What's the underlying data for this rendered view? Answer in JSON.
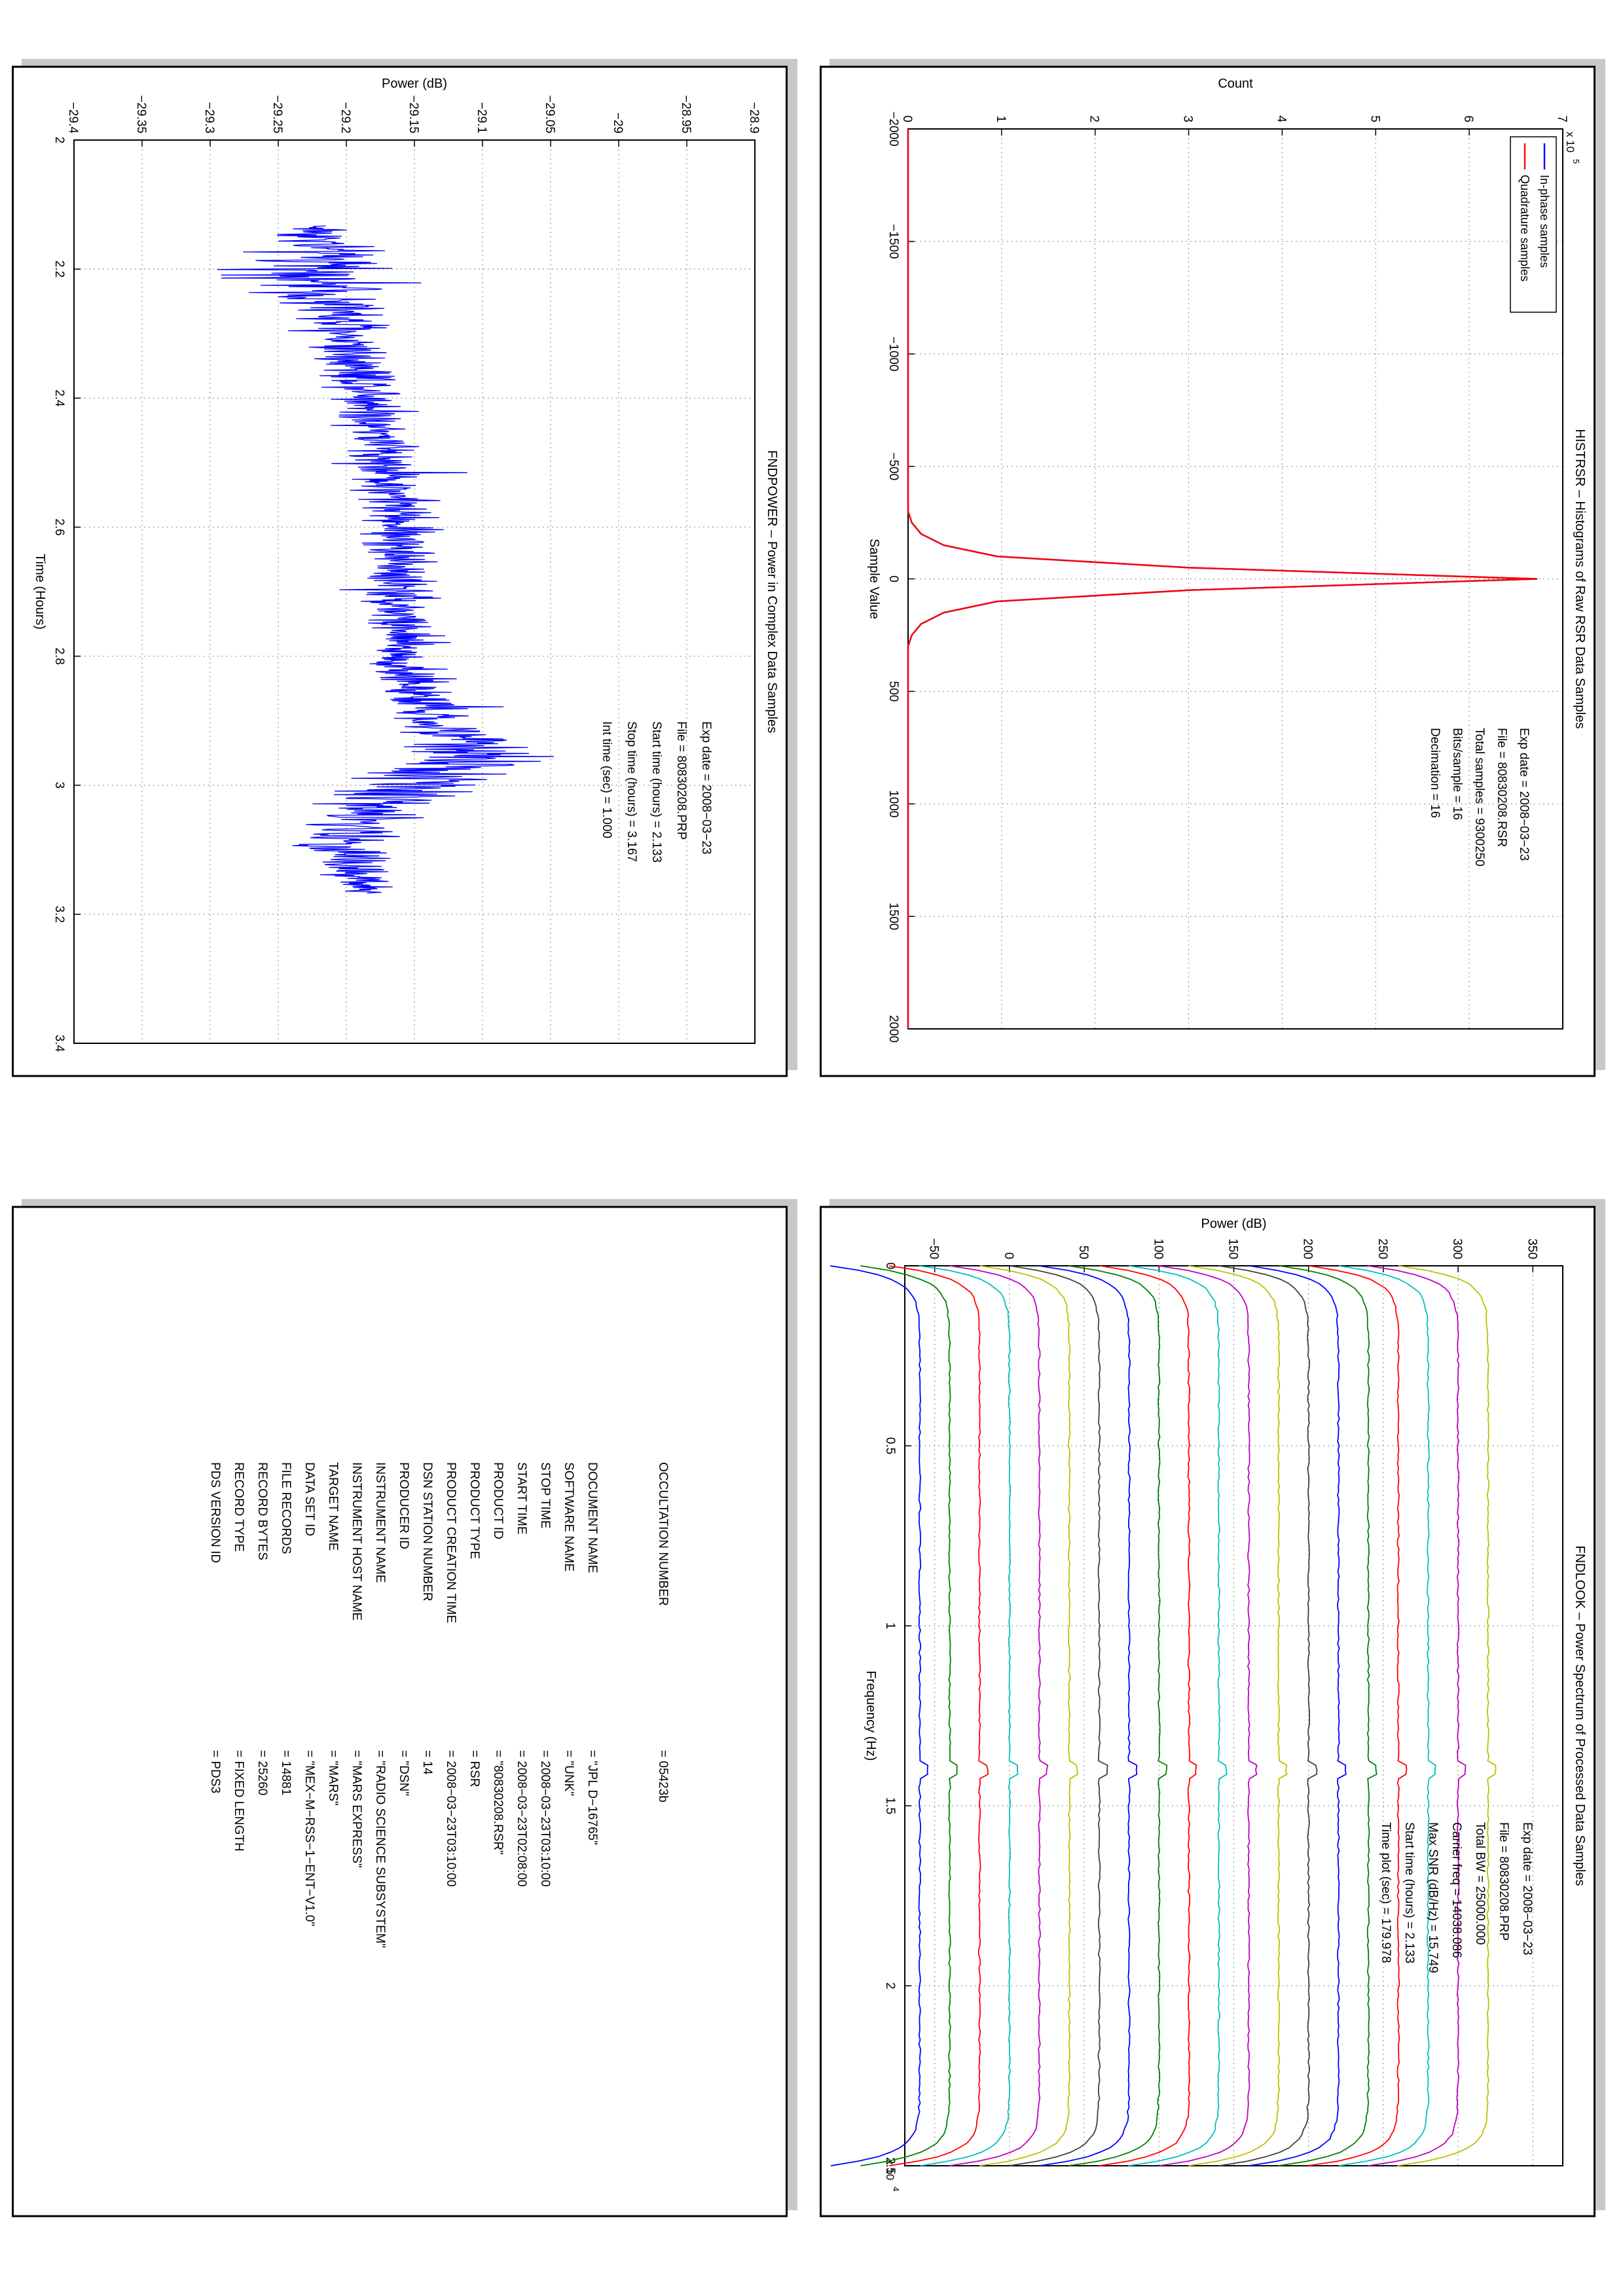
{
  "chart_data": [
    {
      "type": "line",
      "title": "HISTRSR – Histograms of Raw RSR Data Samples",
      "xlabel": "Sample Value",
      "ylabel": "Count",
      "xlim": [
        -2000,
        2000
      ],
      "ylim": [
        0,
        700000
      ],
      "x_ticks": [
        "−2000",
        "−1500",
        "−1000",
        "−500",
        "0",
        "500",
        "1000",
        "1500",
        "2000"
      ],
      "y_ticks": [
        "0",
        "1",
        "2",
        "3",
        "4",
        "5",
        "6",
        "7"
      ],
      "y_exponent_label": "x 10",
      "y_exponent_power": "5",
      "grid": true,
      "legend_position": "top-left",
      "series": [
        {
          "name": "In-phase samples",
          "color": "#0000ff",
          "x": [
            -2000,
            -300,
            -250,
            -200,
            -150,
            -100,
            -50,
            0,
            50,
            100,
            150,
            200,
            250,
            300,
            2000
          ],
          "y": [
            0,
            0,
            4000,
            14000,
            38000,
            95000,
            300000,
            672000,
            300000,
            95000,
            38000,
            14000,
            4000,
            0,
            0
          ]
        },
        {
          "name": "Quadrature samples",
          "color": "#ff0000",
          "x": [
            -2000,
            -300,
            -250,
            -200,
            -150,
            -100,
            -50,
            0,
            50,
            100,
            150,
            200,
            250,
            300,
            2000
          ],
          "y": [
            0,
            0,
            4000,
            14000,
            38000,
            95000,
            300000,
            672000,
            300000,
            95000,
            38000,
            14000,
            4000,
            0,
            0
          ]
        }
      ],
      "annotations": [
        {
          "label": "Exp date = 2008−03−23"
        },
        {
          "label": "File = 80830208.RSR"
        },
        {
          "label": "Total samples =  9300250"
        },
        {
          "label": "Bits/sample   =        16"
        },
        {
          "label": "Decimation    =        16"
        }
      ]
    },
    {
      "type": "line",
      "title": "FNDPOWER – Power in Complex Data Samples",
      "xlabel": "Time (Hours)",
      "ylabel": "Power (dB)",
      "xlim": [
        2.0,
        3.4
      ],
      "ylim": [
        -29.4,
        -28.9
      ],
      "x_ticks": [
        "2",
        "2.2",
        "2.4",
        "2.6",
        "2.8",
        "3",
        "3.2",
        "3.4"
      ],
      "y_ticks": [
        "−29.4",
        "−29.35",
        "−29.3",
        "−29.25",
        "−29.2",
        "−29.15",
        "−29.1",
        "−29.05",
        "−29",
        "−28.95",
        "−28.9"
      ],
      "grid": true,
      "series": [
        {
          "name": "",
          "color": "#0000ff",
          "x": [
            2.133,
            2.2,
            2.3,
            2.4,
            2.5,
            2.6,
            2.7,
            2.8,
            2.9,
            2.95,
            3.0,
            3.05,
            3.1,
            3.167
          ],
          "y": [
            -29.22,
            -29.22,
            -29.2,
            -29.18,
            -29.17,
            -29.16,
            -29.16,
            -29.16,
            -29.14,
            -29.1,
            -29.15,
            -29.19,
            -29.2,
            -29.19
          ],
          "spread": [
            0.05,
            0.1,
            0.06,
            0.05,
            0.05,
            0.05,
            0.05,
            0.05,
            0.05,
            0.09,
            0.1,
            0.07,
            0.06,
            0.05
          ]
        }
      ],
      "annotations": [
        {
          "label": "Exp date = 2008−03−23"
        },
        {
          "label": "File = 80830208.PRP"
        },
        {
          "label": "Start time (hours) =  2.133"
        },
        {
          "label": "Stop time (hours) =  3.167"
        },
        {
          "label": "Int time (sec) =       1.000"
        }
      ]
    },
    {
      "type": "line",
      "title": "FNDLOOK – Power Spectrum of Processed Data Samples",
      "xlabel": "Frequency (Hz)",
      "ylabel": "Power (dB)",
      "xlim": [
        0,
        25000
      ],
      "ylim": [
        -70,
        370
      ],
      "x_ticks": [
        "0",
        "0.5",
        "1",
        "1.5",
        "2",
        "2.5"
      ],
      "x_exponent_label": "x 10",
      "x_exponent_power": "4",
      "y_ticks": [
        "−50",
        "0",
        "50",
        "100",
        "150",
        "200",
        "250",
        "300",
        "350"
      ],
      "grid": true,
      "series_levels": [
        -60,
        -40,
        -20,
        0,
        20,
        40,
        60,
        80,
        100,
        120,
        140,
        160,
        180,
        200,
        220,
        240,
        260,
        280,
        300,
        320
      ],
      "series_colors": [
        "#0000ff",
        "#008000",
        "#ff0000",
        "#00bfbf",
        "#bf00bf",
        "#bfbf00",
        "#404040",
        "#0000ff",
        "#008000",
        "#ff0000",
        "#00bfbf",
        "#bf00bf",
        "#bfbf00",
        "#404040",
        "#0000ff",
        "#008000",
        "#ff0000",
        "#00bfbf",
        "#bf00bf",
        "#bfbf00"
      ],
      "rolloff_dB": 60,
      "annotations": [
        {
          "label": "Exp date = 2008−03−23"
        },
        {
          "label": "File = 80830208.PRP"
        },
        {
          "label": "Total BW =      25000.000"
        },
        {
          "label": "Carrier freq =   14038.086"
        },
        {
          "label": "Max SNR (dB/Hz) =      15.749"
        },
        {
          "label": "Start time (hours) =   2.133"
        },
        {
          "label": "Time plot (sec) =     179.978"
        }
      ]
    }
  ],
  "label_table": {
    "rows": [
      {
        "key": "PDS VERSION ID",
        "value": "=  PDS3"
      },
      {
        "key": "RECORD TYPE",
        "value": "=  FIXED LENGTH"
      },
      {
        "key": "RECORD BYTES",
        "value": "=  25260"
      },
      {
        "key": "FILE RECORDS",
        "value": "=  14881"
      },
      {
        "key": "DATA SET ID",
        "value": "=  \"MEX−M−RSS−1−ENT−V1.0\""
      },
      {
        "key": "TARGET NAME",
        "value": "=  \"MARS\""
      },
      {
        "key": "INSTRUMENT HOST NAME",
        "value": "=  \"MARS EXPRESS\""
      },
      {
        "key": "INSTRUMENT NAME",
        "value": "=  \"RADIO SCIENCE SUBSYSTEM\""
      },
      {
        "key": "PRODUCER ID",
        "value": "=  \"DSN\""
      },
      {
        "key": "DSN STATION NUMBER",
        "value": "=  14"
      },
      {
        "key": "PRODUCT CREATION TIME",
        "value": "=  2008−03−23T03:10:00"
      },
      {
        "key": "PRODUCT TYPE",
        "value": "=  RSR"
      },
      {
        "key": "PRODUCT ID",
        "value": "=  \"80830208.RSR\""
      },
      {
        "key": "START TIME",
        "value": "=  2008−03−23T02:08:00"
      },
      {
        "key": "STOP TIME",
        "value": "=  2008−03−23T03:10:00"
      },
      {
        "key": "SOFTWARE NAME",
        "value": "=  \"UNK\""
      },
      {
        "key": "DOCUMENT NAME",
        "value": "=  \"JPL D−16765\""
      }
    ],
    "occultation": {
      "key": "OCCULTATION NUMBER",
      "value": "=  05423b"
    }
  }
}
